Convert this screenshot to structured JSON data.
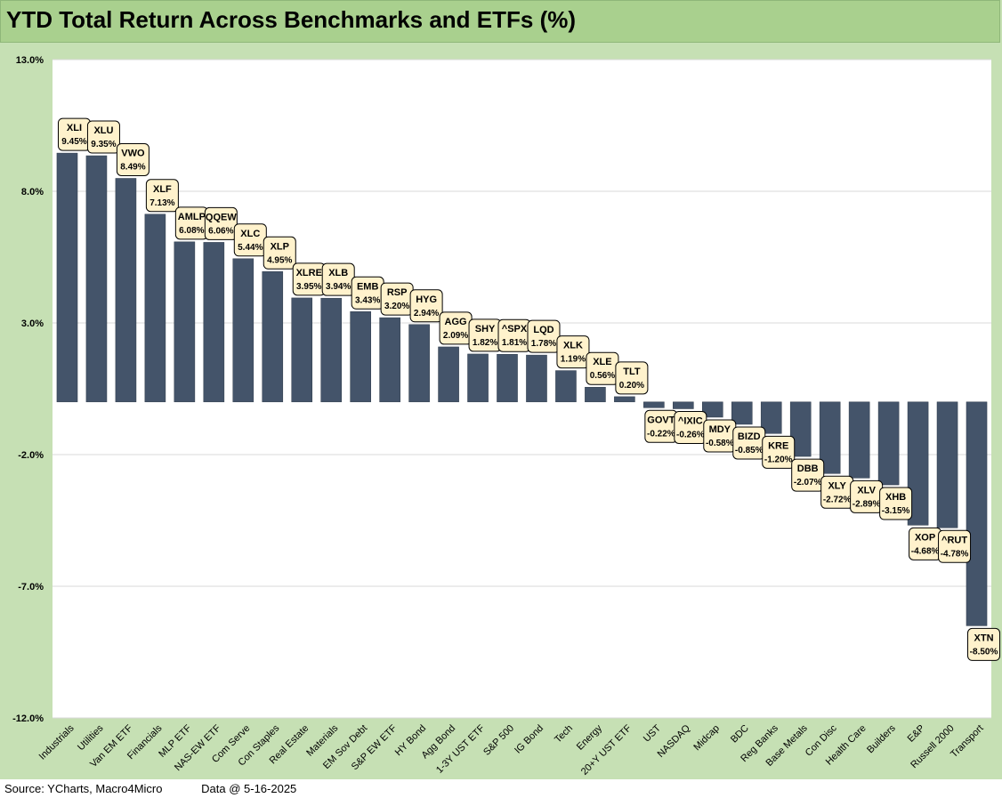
{
  "title": "YTD Total Return Across Benchmarks and ETFs (%)",
  "footer": {
    "source": "Source: YCharts, Macro4Micro",
    "date": "Data @ 5-16-2025"
  },
  "colors": {
    "bar": "#44546a",
    "frame": "#c6e0b4",
    "title_bg": "#a9d08e",
    "label_bg": "#fff2cc"
  },
  "chart_data": {
    "type": "bar",
    "title": "YTD Total Return Across Benchmarks and ETFs (%)",
    "ylim": [
      -12,
      13
    ],
    "yticks": [
      13,
      8,
      3,
      -2,
      -7,
      -12
    ],
    "ytick_labels": [
      "13.0%",
      "8.0%",
      "3.0%",
      "-2.0%",
      "-7.0%",
      "-12.0%"
    ],
    "grid": true,
    "categories": [
      "Industrials",
      "Utilities",
      "Van EM ETF",
      "Financials",
      "MLP ETF",
      "NAS-EW ETF",
      "Com Serve",
      "Con Staples",
      "Real Estate",
      "Materials",
      "EM Sov Debt",
      "S&P EW ETF",
      "HY Bond",
      "Agg Bond",
      "1-3Y UST ETF",
      "S&P 500",
      "IG Bond",
      "Tech",
      "Energy",
      "20+Y UST ETF",
      "UST",
      "NASDAQ",
      "Midcap",
      "BDC",
      "Reg Banks",
      "Base Metals",
      "Con Disc",
      "Health Care",
      "Builders",
      "E&P",
      "Russell 2000",
      "Transport"
    ],
    "tickers": [
      "XLI",
      "XLU",
      "VWO",
      "XLF",
      "AMLP",
      "QQEW",
      "XLC",
      "XLP",
      "XLRE",
      "XLB",
      "EMB",
      "RSP",
      "HYG",
      "AGG",
      "SHY",
      "^SPX",
      "LQD",
      "XLK",
      "XLE",
      "TLT",
      "GOVT",
      "^IXIC",
      "MDY",
      "BIZD",
      "KRE",
      "DBB",
      "XLY",
      "XLV",
      "XHB",
      "XOP",
      "^RUT",
      "XTN"
    ],
    "values": [
      9.45,
      9.35,
      8.49,
      7.13,
      6.08,
      6.06,
      5.44,
      4.95,
      3.95,
      3.94,
      3.43,
      3.2,
      2.94,
      2.09,
      1.82,
      1.81,
      1.78,
      1.19,
      0.56,
      0.2,
      -0.22,
      -0.26,
      -0.58,
      -0.85,
      -1.2,
      -2.07,
      -2.72,
      -2.89,
      -3.15,
      -4.68,
      -4.78,
      -8.5
    ],
    "value_labels": [
      "9.45%",
      "9.35%",
      "8.49%",
      "7.13%",
      "6.08%",
      "6.06%",
      "5.44%",
      "4.95%",
      "3.95%",
      "3.94%",
      "3.43%",
      "3.20%",
      "2.94%",
      "2.09%",
      "1.82%",
      "1.81%",
      "1.78%",
      "1.19%",
      "0.56%",
      "0.20%",
      "-0.22%",
      "-0.26%",
      "-0.58%",
      "-0.85%",
      "-1.20%",
      "-2.07%",
      "-2.72%",
      "-2.89%",
      "-3.15%",
      "-4.68%",
      "-4.78%",
      "-8.50%"
    ]
  }
}
